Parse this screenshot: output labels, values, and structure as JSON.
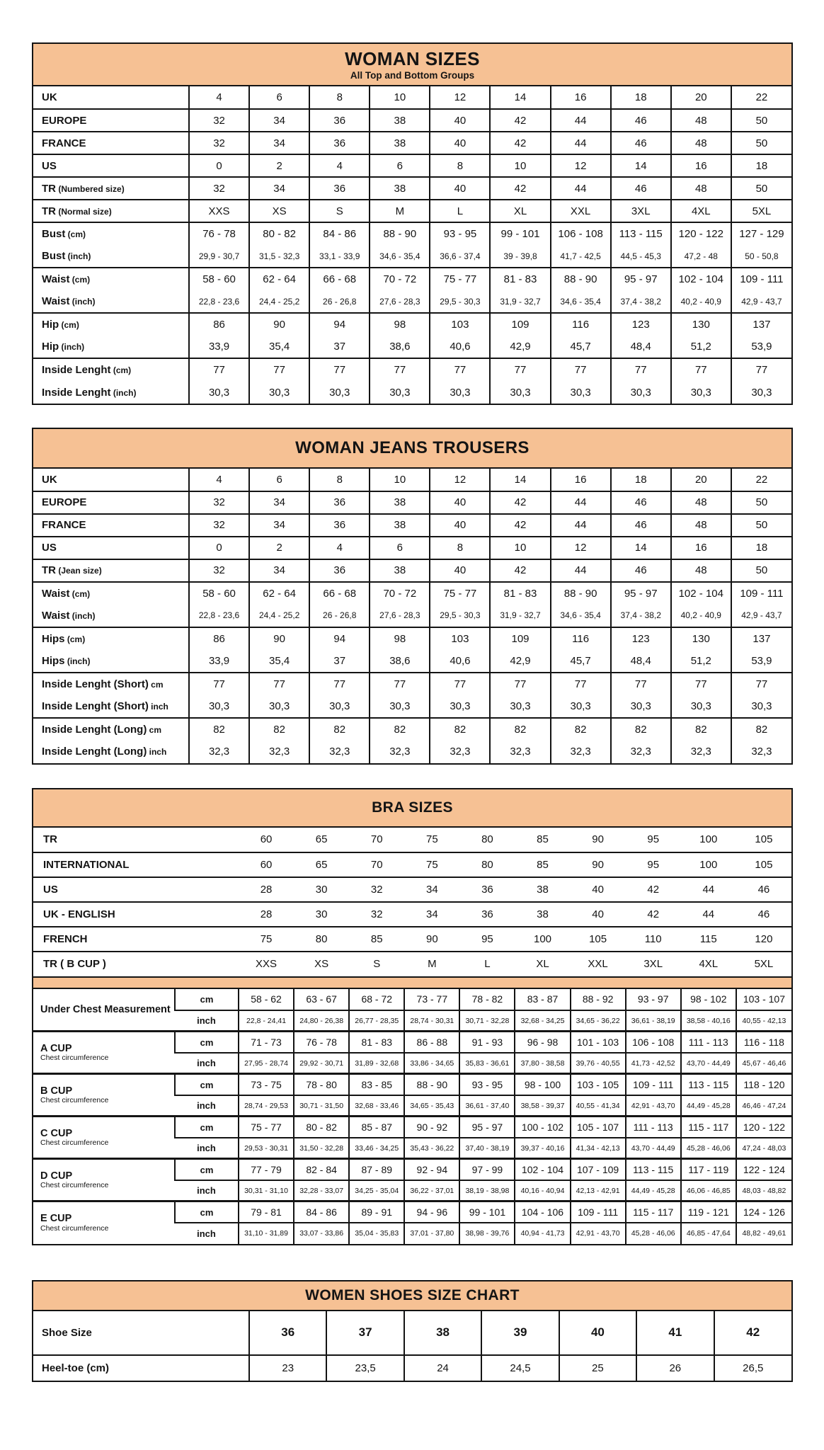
{
  "colors": {
    "header_bg": "#F6C194",
    "border": "#141414",
    "text": "#141414"
  },
  "woman_sizes": {
    "title": "WOMAN SIZES",
    "subtitle": "All Top and Bottom Groups",
    "rows": [
      {
        "label": "UK",
        "unit": "",
        "values": [
          "4",
          "6",
          "8",
          "10",
          "12",
          "14",
          "16",
          "18",
          "20",
          "22"
        ]
      },
      {
        "label": "EUROPE",
        "unit": "",
        "values": [
          "32",
          "34",
          "36",
          "38",
          "40",
          "42",
          "44",
          "46",
          "48",
          "50"
        ]
      },
      {
        "label": "FRANCE",
        "unit": "",
        "values": [
          "32",
          "34",
          "36",
          "38",
          "40",
          "42",
          "44",
          "46",
          "48",
          "50"
        ]
      },
      {
        "label": "US",
        "unit": "",
        "values": [
          "0",
          "2",
          "4",
          "6",
          "8",
          "10",
          "12",
          "14",
          "16",
          "18"
        ]
      },
      {
        "label": "TR",
        "unit": "(Numbered size)",
        "values": [
          "32",
          "34",
          "36",
          "38",
          "40",
          "42",
          "44",
          "46",
          "48",
          "50"
        ]
      },
      {
        "label": "TR",
        "unit": "(Normal size)",
        "values": [
          "XXS",
          "XS",
          "S",
          "M",
          "L",
          "XL",
          "XXL",
          "3XL",
          "4XL",
          "5XL"
        ]
      },
      {
        "label": "Bust",
        "unit": "(cm)",
        "values": [
          "76 - 78",
          "80 - 82",
          "84 - 86",
          "88 - 90",
          "93 - 95",
          "99 - 101",
          "106 - 108",
          "113 - 115",
          "120 - 122",
          "127 - 129"
        ]
      },
      {
        "label": "Bust",
        "unit": "(inch)",
        "cont": true,
        "small": true,
        "values": [
          "29,9 - 30,7",
          "31,5 - 32,3",
          "33,1 - 33,9",
          "34,6 - 35,4",
          "36,6 - 37,4",
          "39 - 39,8",
          "41,7 - 42,5",
          "44,5 - 45,3",
          "47,2 - 48",
          "50 - 50,8"
        ]
      },
      {
        "label": "Waist",
        "unit": "(cm)",
        "values": [
          "58 - 60",
          "62 - 64",
          "66 - 68",
          "70 - 72",
          "75 - 77",
          "81 - 83",
          "88 - 90",
          "95 - 97",
          "102 - 104",
          "109 - 111"
        ]
      },
      {
        "label": "Waist",
        "unit": "(inch)",
        "cont": true,
        "small": true,
        "values": [
          "22,8 - 23,6",
          "24,4 - 25,2",
          "26 - 26,8",
          "27,6 - 28,3",
          "29,5 - 30,3",
          "31,9 - 32,7",
          "34,6 - 35,4",
          "37,4 - 38,2",
          "40,2 - 40,9",
          "42,9 - 43,7"
        ]
      },
      {
        "label": "Hip",
        "unit": "(cm)",
        "values": [
          "86",
          "90",
          "94",
          "98",
          "103",
          "109",
          "116",
          "123",
          "130",
          "137"
        ]
      },
      {
        "label": "Hip",
        "unit": "(inch)",
        "cont": true,
        "values": [
          "33,9",
          "35,4",
          "37",
          "38,6",
          "40,6",
          "42,9",
          "45,7",
          "48,4",
          "51,2",
          "53,9"
        ]
      },
      {
        "label": "Inside Lenght",
        "unit": "(cm)",
        "values": [
          "77",
          "77",
          "77",
          "77",
          "77",
          "77",
          "77",
          "77",
          "77",
          "77"
        ]
      },
      {
        "label": "Inside Lenght",
        "unit": "(inch)",
        "cont": true,
        "values": [
          "30,3",
          "30,3",
          "30,3",
          "30,3",
          "30,3",
          "30,3",
          "30,3",
          "30,3",
          "30,3",
          "30,3"
        ]
      }
    ]
  },
  "jeans": {
    "title": "WOMAN JEANS TROUSERS",
    "rows": [
      {
        "label": "UK",
        "unit": "",
        "values": [
          "4",
          "6",
          "8",
          "10",
          "12",
          "14",
          "16",
          "18",
          "20",
          "22"
        ]
      },
      {
        "label": "EUROPE",
        "unit": "",
        "values": [
          "32",
          "34",
          "36",
          "38",
          "40",
          "42",
          "44",
          "46",
          "48",
          "50"
        ]
      },
      {
        "label": "FRANCE",
        "unit": "",
        "values": [
          "32",
          "34",
          "36",
          "38",
          "40",
          "42",
          "44",
          "46",
          "48",
          "50"
        ]
      },
      {
        "label": "US",
        "unit": "",
        "values": [
          "0",
          "2",
          "4",
          "6",
          "8",
          "10",
          "12",
          "14",
          "16",
          "18"
        ]
      },
      {
        "label": "TR",
        "unit": "(Jean size)",
        "values": [
          "32",
          "34",
          "36",
          "38",
          "40",
          "42",
          "44",
          "46",
          "48",
          "50"
        ]
      },
      {
        "label": "Waist",
        "unit": "(cm)",
        "values": [
          "58 - 60",
          "62 - 64",
          "66 - 68",
          "70 - 72",
          "75 - 77",
          "81 - 83",
          "88 - 90",
          "95 - 97",
          "102 - 104",
          "109 - 111"
        ]
      },
      {
        "label": "Waist",
        "unit": "(inch)",
        "cont": true,
        "small": true,
        "values": [
          "22,8 - 23,6",
          "24,4 - 25,2",
          "26 - 26,8",
          "27,6 - 28,3",
          "29,5 - 30,3",
          "31,9 - 32,7",
          "34,6 - 35,4",
          "37,4 - 38,2",
          "40,2 - 40,9",
          "42,9 - 43,7"
        ]
      },
      {
        "label": "Hips",
        "unit": "(cm)",
        "values": [
          "86",
          "90",
          "94",
          "98",
          "103",
          "109",
          "116",
          "123",
          "130",
          "137"
        ]
      },
      {
        "label": "Hips",
        "unit": "(inch)",
        "cont": true,
        "values": [
          "33,9",
          "35,4",
          "37",
          "38,6",
          "40,6",
          "42,9",
          "45,7",
          "48,4",
          "51,2",
          "53,9"
        ]
      },
      {
        "label": "Inside Lenght (Short)",
        "unit": "cm",
        "values": [
          "77",
          "77",
          "77",
          "77",
          "77",
          "77",
          "77",
          "77",
          "77",
          "77"
        ]
      },
      {
        "label": "Inside Lenght (Short)",
        "unit": "inch",
        "cont": true,
        "values": [
          "30,3",
          "30,3",
          "30,3",
          "30,3",
          "30,3",
          "30,3",
          "30,3",
          "30,3",
          "30,3",
          "30,3"
        ]
      },
      {
        "label": "Inside Lenght (Long)",
        "unit": "cm",
        "values": [
          "82",
          "82",
          "82",
          "82",
          "82",
          "82",
          "82",
          "82",
          "82",
          "82"
        ]
      },
      {
        "label": "Inside Lenght (Long)",
        "unit": "inch",
        "cont": true,
        "values": [
          "32,3",
          "32,3",
          "32,3",
          "32,3",
          "32,3",
          "32,3",
          "32,3",
          "32,3",
          "32,3",
          "32,3"
        ]
      }
    ]
  },
  "bra": {
    "title": "BRA SIZES",
    "band_rows": [
      {
        "label": "TR",
        "values": [
          "60",
          "65",
          "70",
          "75",
          "80",
          "85",
          "90",
          "95",
          "100",
          "105"
        ]
      },
      {
        "label": "INTERNATIONAL",
        "values": [
          "60",
          "65",
          "70",
          "75",
          "80",
          "85",
          "90",
          "95",
          "100",
          "105"
        ]
      },
      {
        "label": "US",
        "values": [
          "28",
          "30",
          "32",
          "34",
          "36",
          "38",
          "40",
          "42",
          "44",
          "46"
        ]
      },
      {
        "label": "UK - ENGLISH",
        "values": [
          "28",
          "30",
          "32",
          "34",
          "36",
          "38",
          "40",
          "42",
          "44",
          "46"
        ]
      },
      {
        "label": "FRENCH",
        "values": [
          "75",
          "80",
          "85",
          "90",
          "95",
          "100",
          "105",
          "110",
          "115",
          "120"
        ]
      },
      {
        "label": "TR ( B CUP )",
        "values": [
          "XXS",
          "XS",
          "S",
          "M",
          "L",
          "XL",
          "XXL",
          "3XL",
          "4XL",
          "5XL"
        ]
      }
    ],
    "units": {
      "cm": "cm",
      "inch": "inch"
    },
    "cup_groups": [
      {
        "label": "Under Chest Measurement",
        "sublabel": "",
        "cm": [
          "58 - 62",
          "63 - 67",
          "68 - 72",
          "73 - 77",
          "78 - 82",
          "83 - 87",
          "88 - 92",
          "93 - 97",
          "98 - 102",
          "103 - 107"
        ],
        "inch": [
          "22,8 - 24,41",
          "24,80 - 26,38",
          "26,77 - 28,35",
          "28,74 - 30,31",
          "30,71 - 32,28",
          "32,68 - 34,25",
          "34,65 - 36,22",
          "36,61 - 38,19",
          "38,58 - 40,16",
          "40,55 - 42,13"
        ]
      },
      {
        "label": "A CUP",
        "sublabel": "Chest circumference",
        "cm": [
          "71 - 73",
          "76 - 78",
          "81 - 83",
          "86 - 88",
          "91 - 93",
          "96 - 98",
          "101 - 103",
          "106 - 108",
          "111 - 113",
          "116 - 118"
        ],
        "inch": [
          "27,95 - 28,74",
          "29,92 - 30,71",
          "31,89 - 32,68",
          "33,86 - 34,65",
          "35,83 - 36,61",
          "37,80 - 38,58",
          "39,76 - 40,55",
          "41,73 - 42,52",
          "43,70 - 44,49",
          "45,67 - 46,46"
        ]
      },
      {
        "label": "B CUP",
        "sublabel": "Chest circumference",
        "cm": [
          "73 - 75",
          "78 - 80",
          "83 - 85",
          "88 - 90",
          "93 - 95",
          "98 - 100",
          "103 - 105",
          "109 - 111",
          "113 - 115",
          "118 - 120"
        ],
        "inch": [
          "28,74 - 29,53",
          "30,71 - 31,50",
          "32,68 - 33,46",
          "34,65 - 35,43",
          "36,61 - 37,40",
          "38,58 - 39,37",
          "40,55 - 41,34",
          "42,91 - 43,70",
          "44,49 - 45,28",
          "46,46 - 47,24"
        ]
      },
      {
        "label": "C CUP",
        "sublabel": "Chest circumference",
        "cm": [
          "75 - 77",
          "80 - 82",
          "85 - 87",
          "90 - 92",
          "95 - 97",
          "100 - 102",
          "105 - 107",
          "111 - 113",
          "115 - 117",
          "120 - 122"
        ],
        "inch": [
          "29,53 - 30,31",
          "31,50 - 32,28",
          "33,46 - 34,25",
          "35,43 - 36,22",
          "37,40 - 38,19",
          "39,37 - 40,16",
          "41,34 - 42,13",
          "43,70 - 44,49",
          "45,28 - 46,06",
          "47,24 - 48,03"
        ]
      },
      {
        "label": "D CUP",
        "sublabel": "Chest circumference",
        "cm": [
          "77 - 79",
          "82 - 84",
          "87 - 89",
          "92 - 94",
          "97 - 99",
          "102 - 104",
          "107 - 109",
          "113 - 115",
          "117 - 119",
          "122 - 124"
        ],
        "inch": [
          "30,31 - 31,10",
          "32,28 - 33,07",
          "34,25 - 35,04",
          "36,22 - 37,01",
          "38,19 - 38,98",
          "40,16 - 40,94",
          "42,13 - 42,91",
          "44,49 - 45,28",
          "46,06 - 46,85",
          "48,03 - 48,82"
        ]
      },
      {
        "label": "E CUP",
        "sublabel": "Chest circumference",
        "cm": [
          "79 - 81",
          "84 - 86",
          "89 - 91",
          "94 - 96",
          "99 - 101",
          "104 - 106",
          "109 - 111",
          "115 - 117",
          "119 - 121",
          "124 - 126"
        ],
        "inch": [
          "31,10 - 31,89",
          "33,07 - 33,86",
          "35,04 - 35,83",
          "37,01 - 37,80",
          "38,98 - 39,76",
          "40,94 - 41,73",
          "42,91 - 43,70",
          "45,28 - 46,06",
          "46,85 - 47,64",
          "48,82 - 49,61"
        ]
      }
    ]
  },
  "shoes": {
    "title": "WOMEN SHOES SIZE CHART",
    "rows": [
      {
        "label": "Shoe Size",
        "bold": true,
        "values": [
          "36",
          "37",
          "38",
          "39",
          "40",
          "41",
          "42"
        ]
      },
      {
        "label": "Heel-toe (cm)",
        "values": [
          "23",
          "23,5",
          "24",
          "24,5",
          "25",
          "26",
          "26,5"
        ]
      }
    ]
  }
}
